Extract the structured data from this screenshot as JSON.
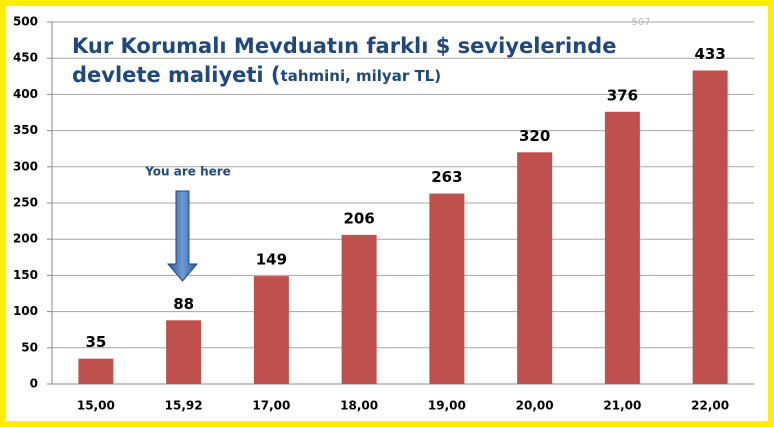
{
  "chart_data": {
    "type": "bar",
    "title": [
      "Kur Korumalı Mevduatın farklı $ seviyelerinde",
      "devlete maliyeti ("
    ],
    "subtitle": "tahmini, milyar TL)",
    "annotations": [
      "You are here",
      "507"
    ],
    "categories": [
      "15,00",
      "15,92",
      "17,00",
      "18,00",
      "19,00",
      "20,00",
      "21,00",
      "22,00"
    ],
    "values": [
      35,
      88,
      149,
      206,
      263,
      320,
      376,
      433
    ],
    "color": "#c0504d",
    "ylim": [
      0,
      500
    ],
    "yticks": [
      0,
      50,
      100,
      150,
      200,
      250,
      300,
      350,
      400,
      450,
      500
    ],
    "grid": true
  }
}
